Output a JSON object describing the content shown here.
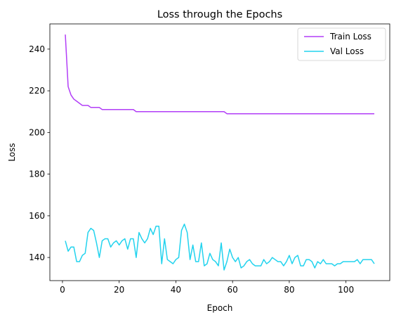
{
  "chart_data": {
    "type": "line",
    "title": "Loss through the Epochs",
    "xlabel": "Epoch",
    "ylabel": "Loss",
    "xlim": [
      -4.45,
      115.45
    ],
    "ylim": [
      128.9,
      252.1
    ],
    "xticks": [
      0,
      20,
      40,
      60,
      80,
      100
    ],
    "yticks": [
      140,
      160,
      180,
      200,
      220,
      240
    ],
    "grid": false,
    "legend": "top-right",
    "series": [
      {
        "name": "Train Loss",
        "color": "#b23ef7",
        "x": [
          1,
          2,
          3,
          4,
          5,
          6,
          7,
          8,
          9,
          10,
          11,
          12,
          13,
          14,
          15,
          16,
          17,
          18,
          19,
          20,
          21,
          22,
          23,
          24,
          25,
          26,
          27,
          28,
          29,
          30,
          31,
          32,
          33,
          34,
          35,
          36,
          37,
          38,
          39,
          40,
          41,
          42,
          43,
          44,
          45,
          46,
          47,
          48,
          49,
          50,
          51,
          52,
          53,
          54,
          55,
          56,
          57,
          58,
          59,
          60,
          61,
          62,
          63,
          64,
          65,
          66,
          67,
          68,
          69,
          70,
          71,
          72,
          73,
          74,
          75,
          76,
          77,
          78,
          79,
          80,
          81,
          82,
          83,
          84,
          85,
          86,
          87,
          88,
          89,
          90,
          91,
          92,
          93,
          94,
          95,
          96,
          97,
          98,
          99,
          100,
          101,
          102,
          103,
          104,
          105,
          106,
          107,
          108,
          109,
          110
        ],
        "values": [
          247,
          222,
          218,
          216,
          215,
          214,
          213,
          213,
          213,
          212,
          212,
          212,
          212,
          211,
          211,
          211,
          211,
          211,
          211,
          211,
          211,
          211,
          211,
          211,
          211,
          210,
          210,
          210,
          210,
          210,
          210,
          210,
          210,
          210,
          210,
          210,
          210,
          210,
          210,
          210,
          210,
          210,
          210,
          210,
          210,
          210,
          210,
          210,
          210,
          210,
          210,
          210,
          210,
          210,
          210,
          210,
          210,
          209,
          209,
          209,
          209,
          209,
          209,
          209,
          209,
          209,
          209,
          209,
          209,
          209,
          209,
          209,
          209,
          209,
          209,
          209,
          209,
          209,
          209,
          209,
          209,
          209,
          209,
          209,
          209,
          209,
          209,
          209,
          209,
          209,
          209,
          209,
          209,
          209,
          209,
          209,
          209,
          209,
          209,
          209,
          209,
          209,
          209,
          209,
          209,
          209,
          209,
          209,
          209,
          209
        ]
      },
      {
        "name": "Val Loss",
        "color": "#22d3ee",
        "x": [
          1,
          2,
          3,
          4,
          5,
          6,
          7,
          8,
          9,
          10,
          11,
          12,
          13,
          14,
          15,
          16,
          17,
          18,
          19,
          20,
          21,
          22,
          23,
          24,
          25,
          26,
          27,
          28,
          29,
          30,
          31,
          32,
          33,
          34,
          35,
          36,
          37,
          38,
          39,
          40,
          41,
          42,
          43,
          44,
          45,
          46,
          47,
          48,
          49,
          50,
          51,
          52,
          53,
          54,
          55,
          56,
          57,
          58,
          59,
          60,
          61,
          62,
          63,
          64,
          65,
          66,
          67,
          68,
          69,
          70,
          71,
          72,
          73,
          74,
          75,
          76,
          77,
          78,
          79,
          80,
          81,
          82,
          83,
          84,
          85,
          86,
          87,
          88,
          89,
          90,
          91,
          92,
          93,
          94,
          95,
          96,
          97,
          98,
          99,
          100,
          101,
          102,
          103,
          104,
          105,
          106,
          107,
          108,
          109,
          110
        ],
        "values": [
          148,
          143,
          145,
          145,
          138,
          138,
          141,
          142,
          152,
          154,
          153,
          147,
          140,
          148,
          149,
          149,
          145,
          147,
          148,
          146,
          148,
          149,
          144,
          149,
          149,
          140,
          152,
          149,
          147,
          149,
          154,
          151,
          155,
          155,
          137,
          149,
          139,
          138,
          137,
          139,
          140,
          153,
          156,
          152,
          139,
          146,
          138,
          138,
          147,
          136,
          137,
          142,
          139,
          138,
          136,
          147,
          134,
          138,
          144,
          140,
          138,
          140,
          135,
          136,
          138,
          139,
          137,
          136,
          136,
          136,
          139,
          137,
          138,
          140,
          139,
          138,
          138,
          136,
          138,
          141,
          137,
          140,
          141,
          136,
          136,
          139,
          139,
          138,
          135,
          138,
          137,
          139,
          137,
          137,
          137,
          136,
          137,
          137,
          138,
          138,
          138,
          138,
          138,
          139,
          137,
          139,
          139,
          139,
          139,
          137
        ]
      }
    ]
  }
}
